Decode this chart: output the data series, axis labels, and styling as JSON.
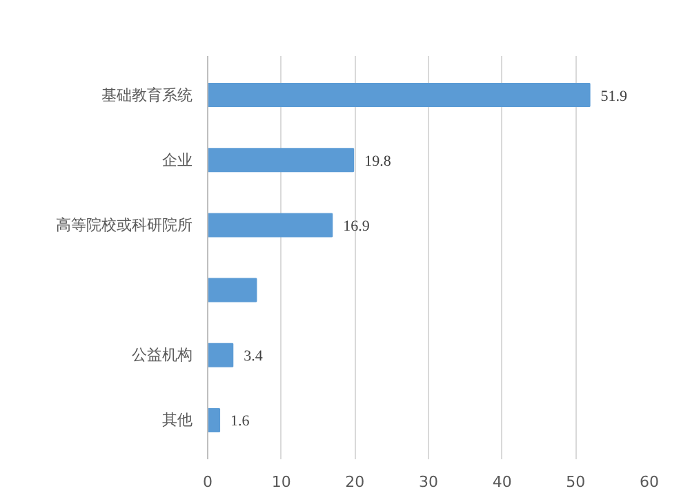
{
  "chart_data": {
    "type": "bar",
    "orientation": "horizontal",
    "categories": [
      "基础教育系统",
      "企业",
      "高等院校或科研院所",
      null,
      "公益机构",
      "其他"
    ],
    "values": [
      51.9,
      19.8,
      16.9,
      6.6,
      3.4,
      1.6
    ],
    "value_labels": [
      "51.9",
      "19.8",
      "16.9",
      null,
      "3.4",
      "1.6"
    ],
    "color": "#5b9bd5",
    "xlim": [
      0,
      60
    ],
    "xticks": [
      0,
      10,
      20,
      30,
      40,
      50,
      60
    ],
    "grid": "x"
  }
}
